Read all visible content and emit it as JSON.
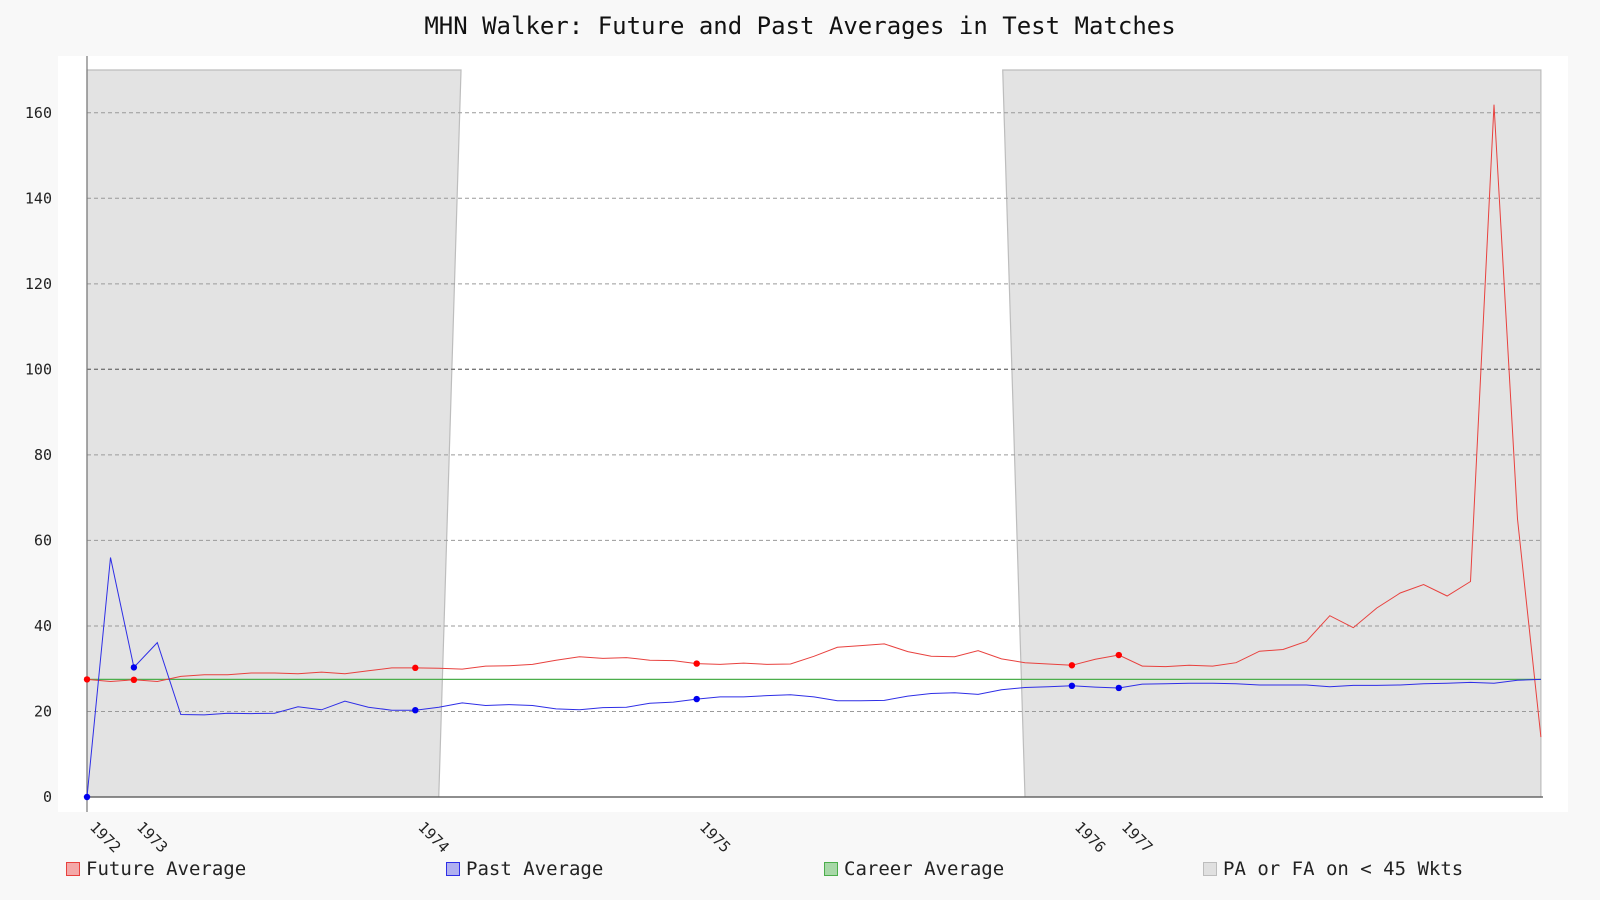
{
  "chart_data": {
    "type": "line",
    "title": "MHN Walker: Future and Past Averages in Test Matches",
    "xlabel": "",
    "ylabel": "",
    "ylim": [
      0,
      170
    ],
    "yticks": [
      0,
      20,
      40,
      60,
      80,
      100,
      120,
      140,
      160
    ],
    "grid": true,
    "legend_position": "bottom",
    "year_labels": [
      {
        "label": "1972",
        "index": 0
      },
      {
        "label": "1973",
        "index": 2
      },
      {
        "label": "1974",
        "index": 14
      },
      {
        "label": "1975",
        "index": 26
      },
      {
        "label": "1976",
        "index": 42
      },
      {
        "label": "1977",
        "index": 44
      }
    ],
    "series": [
      {
        "name": "Future Average",
        "color": "#e8413e",
        "values": [
          27.5,
          27.0,
          27.4,
          27.0,
          28.2,
          28.6,
          28.6,
          29.0,
          29.0,
          28.8,
          29.2,
          28.8,
          29.5,
          30.2,
          30.2,
          30.1,
          29.9,
          30.6,
          30.7,
          31.0,
          32.0,
          32.8,
          32.4,
          32.6,
          32.0,
          31.9,
          31.2,
          31.0,
          31.3,
          31.0,
          31.1,
          32.9,
          35.0,
          35.4,
          35.8,
          34.0,
          32.9,
          32.8,
          34.2,
          32.3,
          31.4,
          31.1,
          30.8,
          32.2,
          33.2,
          30.6,
          30.5,
          30.8,
          30.6,
          31.4,
          34.1,
          34.5,
          36.4,
          42.4,
          39.6,
          44.2,
          47.7,
          49.7,
          47.0,
          50.4,
          161.9,
          65.0,
          14.0
        ],
        "markers": [
          0,
          2,
          14,
          26,
          42,
          44
        ]
      },
      {
        "name": "Past Average",
        "color": "#2e2ee6",
        "values": [
          0.0,
          56.0,
          30.3,
          36.1,
          19.3,
          19.2,
          19.6,
          19.5,
          19.6,
          21.1,
          20.4,
          22.4,
          21.0,
          20.3,
          20.3,
          21.0,
          22.0,
          21.4,
          21.6,
          21.4,
          20.6,
          20.4,
          20.9,
          21.0,
          21.9,
          22.2,
          22.9,
          23.4,
          23.4,
          23.7,
          23.9,
          23.4,
          22.5,
          22.5,
          22.6,
          23.6,
          24.2,
          24.4,
          24.0,
          25.1,
          25.6,
          25.8,
          26.0,
          25.7,
          25.5,
          26.4,
          26.5,
          26.6,
          26.6,
          26.5,
          26.2,
          26.2,
          26.2,
          25.8,
          26.1,
          26.1,
          26.2,
          26.5,
          26.6,
          26.8,
          26.6,
          27.3,
          27.5
        ],
        "markers": [
          0,
          2,
          14,
          26,
          42,
          44
        ]
      },
      {
        "name": "Career Average",
        "color": "#4cae4c",
        "values": [
          27.5,
          27.5
        ]
      }
    ],
    "shaded_regions": {
      "name": "PA or FA on < 45 Wkts",
      "color": "#e3e3e3",
      "ranges": [
        [
          0,
          15.0
        ],
        [
          40.0,
          62
        ]
      ],
      "transition_top": [
        15.95,
        39.05
      ]
    },
    "legend": [
      "Future Average",
      "Past Average",
      "Career Average",
      "PA or FA on < 45 Wkts"
    ]
  },
  "legend_colors": {
    "future": {
      "fill": "#f4a8a8",
      "stroke": "#e8413e"
    },
    "past": {
      "fill": "#b0b0f0",
      "stroke": "#2e2ee6"
    },
    "career": {
      "fill": "#a8d8a8",
      "stroke": "#4cae4c"
    },
    "shaded": {
      "fill": "#e0e0e0",
      "stroke": "#bdbdbd"
    }
  }
}
